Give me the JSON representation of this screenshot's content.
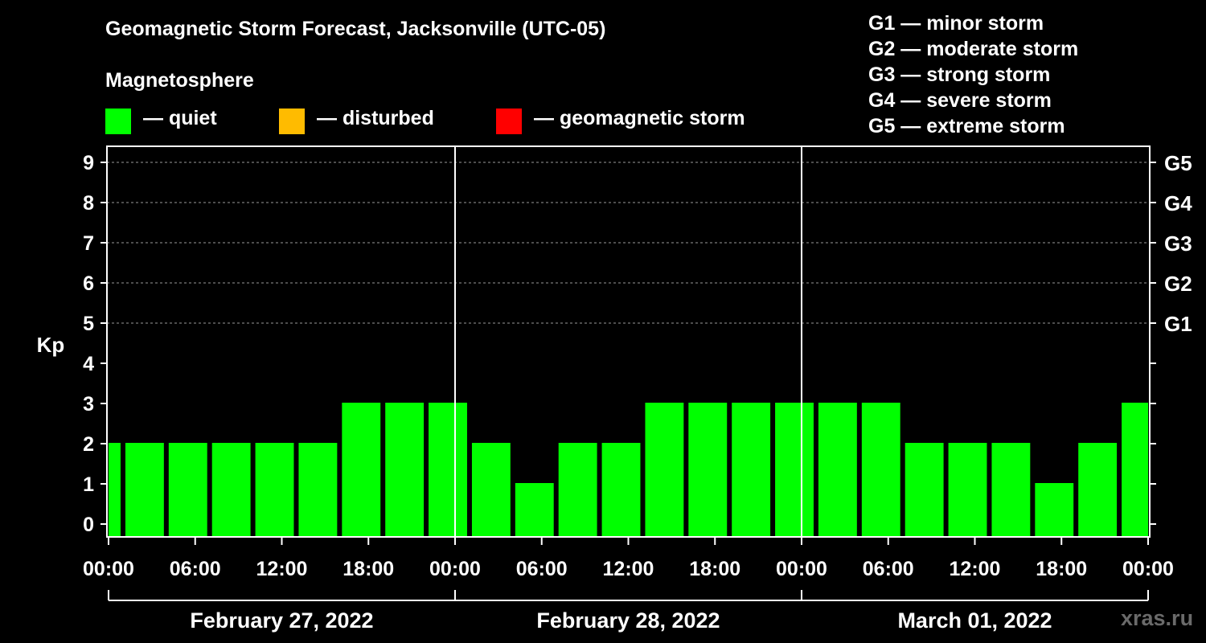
{
  "colors": {
    "quiet": "#00ff00",
    "disturbed": "#ffbb00",
    "storm": "#ff0000",
    "background": "#000000",
    "foreground": "#ffffff"
  },
  "legend": {
    "magnetosphere_title": "Magnetosphere",
    "items": [
      {
        "label": "— quiet",
        "color": "#00ff00"
      },
      {
        "label": "— disturbed",
        "color": "#ffbb00"
      },
      {
        "label": "— geomagnetic storm",
        "color": "#ff0000"
      }
    ]
  },
  "storm_levels": [
    "G1 — minor storm",
    "G2 — moderate storm",
    "G3 — strong storm",
    "G4 — severe storm",
    "G5 — extreme storm"
  ],
  "watermark": "xras.ru",
  "chart_data": {
    "type": "bar",
    "title": "Geomagnetic Storm Forecast, Jacksonville (UTC-05)",
    "ylabel": "Kp",
    "ylim": [
      0,
      9
    ],
    "yticks": [
      "0",
      "1",
      "2",
      "3",
      "4",
      "5",
      "6",
      "7",
      "8",
      "9"
    ],
    "right_axis_labels": [
      {
        "kp": 5,
        "label": "G1"
      },
      {
        "kp": 6,
        "label": "G2"
      },
      {
        "kp": 7,
        "label": "G3"
      },
      {
        "kp": 8,
        "label": "G4"
      },
      {
        "kp": 9,
        "label": "G5"
      }
    ],
    "x_hours_range": [
      0,
      72
    ],
    "xtick_labels": [
      "00:00",
      "06:00",
      "12:00",
      "18:00",
      "00:00",
      "06:00",
      "12:00",
      "18:00",
      "00:00",
      "06:00",
      "12:00",
      "18:00",
      "00:00"
    ],
    "xtick_hours": [
      0,
      6,
      12,
      18,
      24,
      30,
      36,
      42,
      48,
      54,
      60,
      66,
      72
    ],
    "day_separator_hours": [
      24,
      48
    ],
    "dates": [
      "February 27, 2022",
      "February 28, 2022",
      "March 01, 2022"
    ],
    "bars": [
      {
        "start": 0,
        "end": 1,
        "kp": 2
      },
      {
        "start": 1,
        "end": 4,
        "kp": 2
      },
      {
        "start": 4,
        "end": 7,
        "kp": 2
      },
      {
        "start": 7,
        "end": 10,
        "kp": 2
      },
      {
        "start": 10,
        "end": 13,
        "kp": 2
      },
      {
        "start": 13,
        "end": 16,
        "kp": 2
      },
      {
        "start": 16,
        "end": 19,
        "kp": 3
      },
      {
        "start": 19,
        "end": 22,
        "kp": 3
      },
      {
        "start": 22,
        "end": 25,
        "kp": 3
      },
      {
        "start": 25,
        "end": 28,
        "kp": 2
      },
      {
        "start": 28,
        "end": 31,
        "kp": 1
      },
      {
        "start": 31,
        "end": 34,
        "kp": 2
      },
      {
        "start": 34,
        "end": 37,
        "kp": 2
      },
      {
        "start": 37,
        "end": 40,
        "kp": 3
      },
      {
        "start": 40,
        "end": 43,
        "kp": 3
      },
      {
        "start": 43,
        "end": 46,
        "kp": 3
      },
      {
        "start": 46,
        "end": 49,
        "kp": 3
      },
      {
        "start": 49,
        "end": 52,
        "kp": 3
      },
      {
        "start": 52,
        "end": 55,
        "kp": 3
      },
      {
        "start": 55,
        "end": 58,
        "kp": 2
      },
      {
        "start": 58,
        "end": 61,
        "kp": 2
      },
      {
        "start": 61,
        "end": 64,
        "kp": 2
      },
      {
        "start": 64,
        "end": 67,
        "kp": 1
      },
      {
        "start": 67,
        "end": 70,
        "kp": 2
      },
      {
        "start": 70,
        "end": 72,
        "kp": 3
      }
    ]
  }
}
